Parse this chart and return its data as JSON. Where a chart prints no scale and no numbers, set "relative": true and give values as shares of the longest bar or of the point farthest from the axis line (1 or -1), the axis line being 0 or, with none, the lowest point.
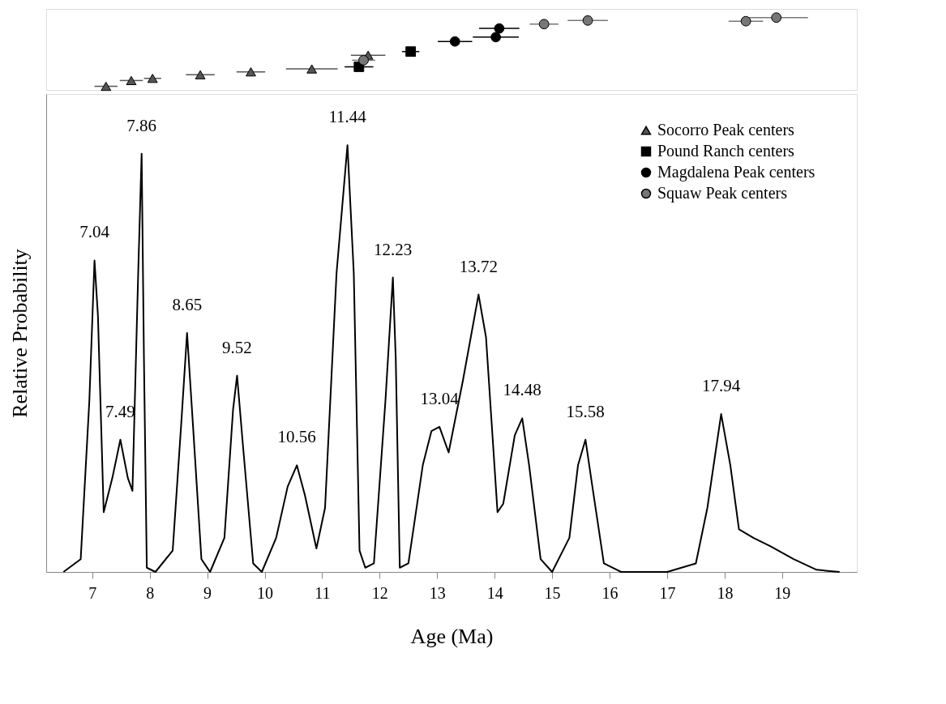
{
  "chart_data": [
    {
      "type": "scatter",
      "relative": true,
      "xlim": [
        6.2,
        20.3
      ],
      "tick_labels": false,
      "legend": "bottom right",
      "series": [
        {
          "name": "Socorro Peak centers",
          "color": "#555555",
          "marker": "triangle",
          "x": [
            7.24,
            7.68,
            8.05,
            8.88,
            9.76,
            10.82,
            11.8
          ],
          "values": [
            0.05,
            0.13,
            0.16,
            0.21,
            0.25,
            0.29,
            0.48
          ],
          "xerrors": [
            0.2,
            0.2,
            0.15,
            0.25,
            0.25,
            0.45,
            0.3
          ]
        },
        {
          "name": "Pound Ranch centers",
          "color": "#000000",
          "marker": "square",
          "x": [
            11.64,
            12.54
          ],
          "values": [
            0.32,
            0.53
          ],
          "xerrors": [
            0.25,
            0.15
          ]
        },
        {
          "name": "Magdalena Peak centers",
          "color": "#000000",
          "marker": "circle",
          "x": [
            13.31,
            14.02,
            14.08
          ],
          "values": [
            0.67,
            0.73,
            0.85
          ],
          "xerrors": [
            0.3,
            0.4,
            0.35
          ]
        },
        {
          "name": "Squaw Peak centers",
          "color": "#777777",
          "marker": "circle",
          "x": [
            11.72,
            14.86,
            15.62,
            18.37,
            18.9
          ],
          "values": [
            0.41,
            0.91,
            0.96,
            0.95,
            1.0
          ],
          "xerrors": [
            0.2,
            0.25,
            0.35,
            0.3,
            0.55
          ]
        }
      ]
    },
    {
      "type": "line",
      "relative": true,
      "xlabel": "Age (Ma)",
      "ylabel": "Relative Probability",
      "xlim": [
        6.2,
        20.3
      ],
      "xticks": [
        7,
        8,
        9,
        10,
        11,
        12,
        13,
        14,
        15,
        16,
        17,
        18,
        19
      ],
      "tick_labels": "x",
      "series": [
        {
          "color": "#000000",
          "x": [
            6.5,
            6.8,
            6.95,
            7.04,
            7.1,
            7.2,
            7.35,
            7.49,
            7.62,
            7.7,
            7.8,
            7.86,
            7.9,
            7.95,
            8.1,
            8.4,
            8.55,
            8.65,
            8.75,
            8.9,
            9.05,
            9.3,
            9.45,
            9.52,
            9.62,
            9.8,
            9.95,
            10.2,
            10.4,
            10.56,
            10.7,
            10.9,
            11.05,
            11.25,
            11.44,
            11.55,
            11.65,
            11.75,
            11.9,
            12.1,
            12.23,
            12.28,
            12.35,
            12.5,
            12.75,
            12.9,
            13.04,
            13.2,
            13.45,
            13.72,
            13.85,
            14.05,
            14.15,
            14.35,
            14.48,
            14.6,
            14.8,
            15.0,
            15.3,
            15.45,
            15.58,
            15.7,
            15.9,
            16.2,
            17.0,
            17.5,
            17.7,
            17.94,
            18.1,
            18.25,
            18.5,
            18.8,
            19.2,
            19.6,
            20.0
          ],
          "values": [
            0,
            0.03,
            0.4,
            0.73,
            0.6,
            0.14,
            0.22,
            0.31,
            0.22,
            0.19,
            0.7,
            0.98,
            0.5,
            0.01,
            0,
            0.05,
            0.35,
            0.56,
            0.35,
            0.03,
            0,
            0.08,
            0.38,
            0.46,
            0.3,
            0.02,
            0,
            0.08,
            0.2,
            0.25,
            0.18,
            0.055,
            0.15,
            0.7,
            1.0,
            0.7,
            0.05,
            0.01,
            0.02,
            0.4,
            0.69,
            0.5,
            0.01,
            0.02,
            0.25,
            0.33,
            0.34,
            0.28,
            0.45,
            0.65,
            0.55,
            0.14,
            0.16,
            0.32,
            0.36,
            0.25,
            0.03,
            0,
            0.08,
            0.25,
            0.31,
            0.2,
            0.02,
            0,
            0,
            0.02,
            0.15,
            0.37,
            0.25,
            0.1,
            0.08,
            0.06,
            0.03,
            0.005,
            0
          ]
        }
      ],
      "annotations": [
        {
          "text": "7.04",
          "x": 7.04,
          "y": 0.73
        },
        {
          "text": "7.49",
          "x": 7.49,
          "y": 0.31
        },
        {
          "text": "7.86",
          "x": 7.86,
          "y": 0.98
        },
        {
          "text": "8.65",
          "x": 8.65,
          "y": 0.56
        },
        {
          "text": "9.52",
          "x": 9.52,
          "y": 0.46
        },
        {
          "text": "10.56",
          "x": 10.56,
          "y": 0.25
        },
        {
          "text": "11.44",
          "x": 11.44,
          "y": 1.0
        },
        {
          "text": "12.23",
          "x": 12.23,
          "y": 0.69
        },
        {
          "text": "13.04",
          "x": 13.04,
          "y": 0.34
        },
        {
          "text": "13.72",
          "x": 13.72,
          "y": 0.65
        },
        {
          "text": "14.48",
          "x": 14.48,
          "y": 0.36
        },
        {
          "text": "15.58",
          "x": 15.58,
          "y": 0.31
        },
        {
          "text": "17.94",
          "x": 17.94,
          "y": 0.37
        }
      ]
    }
  ]
}
